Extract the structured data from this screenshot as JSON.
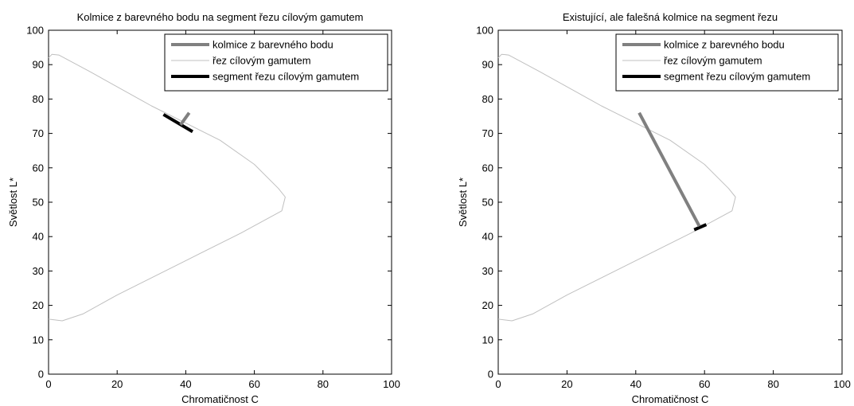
{
  "chart_data": [
    {
      "type": "line",
      "title": "Kolmice z barevného bodu na segment řezu cílovým gamutem",
      "xlabel": "Chromatičnost C",
      "ylabel": "Světlost L*",
      "xlim": [
        0,
        100
      ],
      "ylim": [
        0,
        100
      ],
      "xticks": [
        "0",
        "20",
        "40",
        "60",
        "80",
        "100"
      ],
      "yticks": [
        "0",
        "10",
        "20",
        "30",
        "40",
        "50",
        "60",
        "70",
        "80",
        "90",
        "100"
      ],
      "grid": false,
      "legend_position": "top-right",
      "series": [
        {
          "name": "kolmice z barevného bodu",
          "color": "#808080",
          "x": [
            38.5,
            41
          ],
          "y": [
            72.5,
            76
          ]
        },
        {
          "name": "řez cílovým gamutem",
          "color": "#c0c0c0",
          "x": [
            0,
            1,
            3,
            12,
            30,
            50,
            60,
            67,
            69,
            68,
            56,
            40,
            20,
            10,
            4,
            0
          ],
          "y": [
            92,
            93,
            92.8,
            88,
            78,
            68,
            61,
            54,
            51.5,
            47.5,
            41,
            33,
            23,
            17.5,
            15.5,
            16
          ]
        },
        {
          "name": "segment řezu cílovým gamutem",
          "color": "#000000",
          "x": [
            33.5,
            42
          ],
          "y": [
            75.5,
            70.5
          ]
        }
      ]
    },
    {
      "type": "line",
      "title": "Existující, ale falešná kolmice na segment řezu",
      "xlabel": "Chromatičnost C",
      "ylabel": "Světlost L*",
      "xlim": [
        0,
        100
      ],
      "ylim": [
        0,
        100
      ],
      "xticks": [
        "0",
        "20",
        "40",
        "60",
        "80",
        "100"
      ],
      "yticks": [
        "0",
        "10",
        "20",
        "30",
        "40",
        "50",
        "60",
        "70",
        "80",
        "90",
        "100"
      ],
      "grid": false,
      "legend_position": "top-right",
      "series": [
        {
          "name": "kolmice z barevného bodu",
          "color": "#808080",
          "x": [
            41,
            58.5
          ],
          "y": [
            76,
            43
          ]
        },
        {
          "name": "řez cílovým gamutem",
          "color": "#c0c0c0",
          "x": [
            0,
            1,
            3,
            12,
            30,
            50,
            60,
            67,
            69,
            68,
            56,
            40,
            20,
            10,
            4,
            0
          ],
          "y": [
            92,
            93,
            92.8,
            88,
            78,
            68,
            61,
            54,
            51.5,
            47.5,
            41,
            33,
            23,
            17.5,
            15.5,
            16
          ]
        },
        {
          "name": "segment řezu cílovým gamutem",
          "color": "#000000",
          "x": [
            57,
            60.5
          ],
          "y": [
            42,
            43.5
          ]
        }
      ]
    }
  ]
}
